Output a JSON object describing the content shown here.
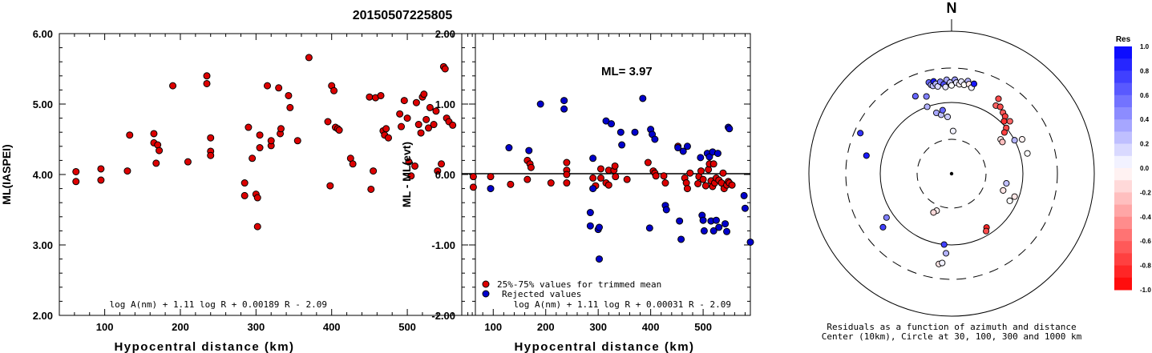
{
  "title": "20150507225805",
  "chart_data": [
    {
      "type": "scatter",
      "ylabel": "ML(IASPEI)",
      "xlabel": "Hypocentral distance (km)",
      "xlim": [
        40,
        590
      ],
      "ylim": [
        2.0,
        6.0
      ],
      "xticks": [
        100,
        200,
        300,
        400,
        500
      ],
      "yticks": [
        "2.00",
        "3.00",
        "4.00",
        "5.00",
        "6.00"
      ],
      "formula": "log A(nm) + 1.11 log R + 0.00189 R - 2.09",
      "color": "#dd0000",
      "points": [
        [
          62,
          4.04
        ],
        [
          62,
          3.9
        ],
        [
          95,
          4.08
        ],
        [
          95,
          3.92
        ],
        [
          133,
          4.56
        ],
        [
          130,
          4.05
        ],
        [
          165,
          4.45
        ],
        [
          165,
          4.58
        ],
        [
          168,
          4.16
        ],
        [
          170,
          4.42
        ],
        [
          172,
          4.34
        ],
        [
          190,
          5.26
        ],
        [
          210,
          4.18
        ],
        [
          235,
          5.4
        ],
        [
          235,
          5.29
        ],
        [
          240,
          4.52
        ],
        [
          240,
          4.33
        ],
        [
          240,
          4.27
        ],
        [
          285,
          3.7
        ],
        [
          285,
          3.88
        ],
        [
          290,
          4.67
        ],
        [
          295,
          4.23
        ],
        [
          300,
          3.72
        ],
        [
          302,
          3.67
        ],
        [
          302,
          3.26
        ],
        [
          305,
          4.56
        ],
        [
          305,
          4.38
        ],
        [
          315,
          5.26
        ],
        [
          320,
          4.41
        ],
        [
          320,
          4.48
        ],
        [
          330,
          5.23
        ],
        [
          332,
          4.58
        ],
        [
          333,
          4.65
        ],
        [
          343,
          5.12
        ],
        [
          345,
          4.95
        ],
        [
          355,
          4.48
        ],
        [
          370,
          5.66
        ],
        [
          395,
          4.75
        ],
        [
          398,
          3.84
        ],
        [
          400,
          5.26
        ],
        [
          403,
          5.19
        ],
        [
          405,
          4.67
        ],
        [
          408,
          4.65
        ],
        [
          410,
          4.63
        ],
        [
          425,
          4.23
        ],
        [
          428,
          4.15
        ],
        [
          450,
          5.1
        ],
        [
          452,
          3.79
        ],
        [
          455,
          4.05
        ],
        [
          458,
          5.09
        ],
        [
          465,
          5.12
        ],
        [
          468,
          4.62
        ],
        [
          470,
          4.56
        ],
        [
          472,
          4.65
        ],
        [
          475,
          4.52
        ],
        [
          490,
          4.86
        ],
        [
          492,
          4.68
        ],
        [
          496,
          5.05
        ],
        [
          500,
          4.8
        ],
        [
          502,
          4.18
        ],
        [
          505,
          3.98
        ],
        [
          510,
          4.12
        ],
        [
          512,
          5.02
        ],
        [
          515,
          4.71
        ],
        [
          518,
          4.59
        ],
        [
          520,
          5.1
        ],
        [
          522,
          5.14
        ],
        [
          525,
          4.78
        ],
        [
          528,
          4.66
        ],
        [
          530,
          4.95
        ],
        [
          535,
          4.71
        ],
        [
          538,
          4.9
        ],
        [
          540,
          4.05
        ],
        [
          545,
          4.15
        ],
        [
          548,
          5.53
        ],
        [
          550,
          5.5
        ],
        [
          552,
          4.8
        ],
        [
          555,
          4.75
        ],
        [
          560,
          4.7
        ]
      ]
    },
    {
      "type": "scatter",
      "ylabel": "ML - ML(evt)",
      "xlabel": "Hypocentral distance (km)",
      "xlim": [
        40,
        590
      ],
      "ylim": [
        -2.0,
        2.0
      ],
      "xticks": [
        100,
        200,
        300,
        400,
        500
      ],
      "yticks": [
        "-2.00",
        "-1.00",
        "0.00",
        "1.00",
        "2.00"
      ],
      "annotation": "ML= 3.97",
      "formula": "log A(nm) + 1.11 log R + 0.00031 R - 2.09",
      "legend": [
        {
          "name": "25%-75% values for trimmed mean",
          "color": "#dd0000"
        },
        {
          "name": "Rejected values",
          "color": "#0000cc"
        }
      ],
      "series": [
        {
          "name": "25%-75% values for trimmed mean",
          "color": "#dd0000",
          "points": [
            [
              62,
              -0.03
            ],
            [
              62,
              -0.18
            ],
            [
              95,
              -0.03
            ],
            [
              133,
              -0.14
            ],
            [
              165,
              -0.07
            ],
            [
              165,
              0.2
            ],
            [
              170,
              0.15
            ],
            [
              172,
              0.1
            ],
            [
              210,
              -0.12
            ],
            [
              240,
              0.17
            ],
            [
              240,
              0.06
            ],
            [
              240,
              0
            ],
            [
              240,
              -0.12
            ],
            [
              290,
              -0.05
            ],
            [
              295,
              -0.16
            ],
            [
              305,
              0.08
            ],
            [
              305,
              -0.05
            ],
            [
              315,
              -0.12
            ],
            [
              320,
              -0.15
            ],
            [
              320,
              0.06
            ],
            [
              330,
              0.06
            ],
            [
              332,
              0.12
            ],
            [
              333,
              -0.03
            ],
            [
              355,
              -0.07
            ],
            [
              395,
              0.17
            ],
            [
              405,
              0.05
            ],
            [
              408,
              0.02
            ],
            [
              410,
              -0.02
            ],
            [
              425,
              -0.02
            ],
            [
              428,
              -0.12
            ],
            [
              452,
              0.4
            ],
            [
              465,
              -0.05
            ],
            [
              468,
              -0.12
            ],
            [
              470,
              -0.2
            ],
            [
              475,
              0.02
            ],
            [
              490,
              -0.13
            ],
            [
              492,
              -0.03
            ],
            [
              496,
              0.05
            ],
            [
              500,
              -0.07
            ],
            [
              505,
              -0.16
            ],
            [
              510,
              0.07
            ],
            [
              512,
              0.15
            ],
            [
              515,
              -0.09
            ],
            [
              518,
              -0.17
            ],
            [
              520,
              0.15
            ],
            [
              522,
              -0.12
            ],
            [
              525,
              -0.05
            ],
            [
              530,
              -0.08
            ],
            [
              535,
              -0.12
            ],
            [
              538,
              0.02
            ],
            [
              540,
              -0.2
            ],
            [
              545,
              -0.15
            ],
            [
              548,
              -0.1
            ],
            [
              550,
              -0.12
            ],
            [
              555,
              -0.15
            ]
          ]
        },
        {
          "name": "Rejected values",
          "color": "#0000cc",
          "points": [
            [
              95,
              -0.2
            ],
            [
              130,
              0.38
            ],
            [
              168,
              0.34
            ],
            [
              190,
              1
            ],
            [
              235,
              1.05
            ],
            [
              235,
              0.93
            ],
            [
              285,
              -0.54
            ],
            [
              285,
              -0.73
            ],
            [
              290,
              0.23
            ],
            [
              290,
              -0.2
            ],
            [
              300,
              -0.78
            ],
            [
              302,
              -0.75
            ],
            [
              302,
              -1.2
            ],
            [
              315,
              0.76
            ],
            [
              325,
              0.72
            ],
            [
              343,
              0.6
            ],
            [
              345,
              0.42
            ],
            [
              370,
              0.6
            ],
            [
              385,
              1.08
            ],
            [
              398,
              -0.76
            ],
            [
              400,
              0.64
            ],
            [
              403,
              0.57
            ],
            [
              408,
              0.5
            ],
            [
              428,
              -0.44
            ],
            [
              430,
              -0.5
            ],
            [
              452,
              0.38
            ],
            [
              455,
              -0.66
            ],
            [
              458,
              -0.92
            ],
            [
              462,
              0.33
            ],
            [
              470,
              0.4
            ],
            [
              495,
              0.24
            ],
            [
              498,
              -0.58
            ],
            [
              500,
              -0.65
            ],
            [
              502,
              -0.8
            ],
            [
              508,
              0.3
            ],
            [
              512,
              0.25
            ],
            [
              515,
              -0.66
            ],
            [
              518,
              0.32
            ],
            [
              520,
              -0.8
            ],
            [
              525,
              -0.65
            ],
            [
              528,
              0.3
            ],
            [
              530,
              -0.75
            ],
            [
              542,
              -0.7
            ],
            [
              545,
              -0.81
            ],
            [
              548,
              0.67
            ],
            [
              550,
              0.65
            ],
            [
              578,
              -0.3
            ],
            [
              580,
              -0.48
            ],
            [
              590,
              -0.96
            ]
          ]
        }
      ]
    },
    {
      "type": "scatter",
      "chart_kind": "polar residual map",
      "north_label": "N",
      "caption_line1": "Residuals as a function of azimuth and distance",
      "caption_line2": "Center (10km), Circle at 30, 100, 300 and 1000 km",
      "colorbar_title": "Res",
      "colorbar_ticks": [
        "1.0",
        "0.8",
        "0.6",
        "0.4",
        "0.2",
        "0.0",
        "-0.2",
        "-0.4",
        "-0.6",
        "-0.8",
        "-1.0"
      ],
      "points_azimuth_dist_res": [
        [
          -14,
          0.66,
          0.6
        ],
        [
          -13,
          0.64,
          0.35
        ],
        [
          -12,
          0.63,
          0.25
        ],
        [
          -11,
          0.66,
          0.9
        ],
        [
          -10,
          0.64,
          0.3
        ],
        [
          -9,
          0.62,
          0.15
        ],
        [
          -7,
          0.65,
          0.5
        ],
        [
          -5,
          0.63,
          0.7
        ],
        [
          -4,
          0.61,
          0.1
        ],
        [
          -3,
          0.66,
          0.35
        ],
        [
          -1,
          0.64,
          0.2
        ],
        [
          0,
          0.62,
          0.0
        ],
        [
          2,
          0.66,
          0.4
        ],
        [
          3,
          0.64,
          0.1
        ],
        [
          5,
          0.63,
          -0.05
        ],
        [
          6,
          0.65,
          0.1
        ],
        [
          8,
          0.63,
          0.0
        ],
        [
          10,
          0.66,
          0.3
        ],
        [
          11,
          0.64,
          -0.1
        ],
        [
          13,
          0.62,
          0.05
        ],
        [
          14,
          0.65,
          0.9
        ],
        [
          -25,
          0.6,
          0.6
        ],
        [
          -18,
          0.57,
          0.5
        ],
        [
          -20,
          0.5,
          0.3
        ],
        [
          -14,
          0.44,
          0.35
        ],
        [
          -10,
          0.42,
          0.25
        ],
        [
          -8,
          0.45,
          0.6
        ],
        [
          -4,
          0.4,
          0.2
        ],
        [
          2,
          0.3,
          0.05
        ],
        [
          32,
          0.62,
          -0.7
        ],
        [
          33,
          0.57,
          -0.6
        ],
        [
          36,
          0.58,
          -0.7
        ],
        [
          40,
          0.56,
          -0.65
        ],
        [
          43,
          0.55,
          -0.75
        ],
        [
          45,
          0.52,
          -0.8
        ],
        [
          48,
          0.55,
          -0.6
        ],
        [
          50,
          0.5,
          -0.7
        ],
        [
          52,
          0.47,
          -0.75
        ],
        [
          55,
          0.42,
          -0.1
        ],
        [
          58,
          0.42,
          -0.25
        ],
        [
          62,
          0.5,
          0.3
        ],
        [
          64,
          0.55,
          -0.05
        ],
        [
          75,
          0.55,
          0.0
        ],
        [
          -66,
          0.7,
          0.8
        ],
        [
          -78,
          0.61,
          0.9
        ],
        [
          100,
          0.39,
          0.25
        ],
        [
          108,
          0.38,
          -0.1
        ],
        [
          110,
          0.47,
          -0.1
        ],
        [
          115,
          0.45,
          0.0
        ],
        [
          -128,
          0.61,
          0.75
        ],
        [
          -124,
          0.55,
          0.5
        ],
        [
          -158,
          0.28,
          -0.05
        ],
        [
          -155,
          0.3,
          -0.15
        ],
        [
          147,
          0.45,
          -0.85
        ],
        [
          149,
          0.47,
          -0.7
        ],
        [
          -174,
          0.5,
          0.75
        ],
        [
          -176,
          0.56,
          0.3
        ],
        [
          -172,
          0.64,
          -0.1
        ],
        [
          -174,
          0.63,
          0.05
        ]
      ]
    }
  ]
}
